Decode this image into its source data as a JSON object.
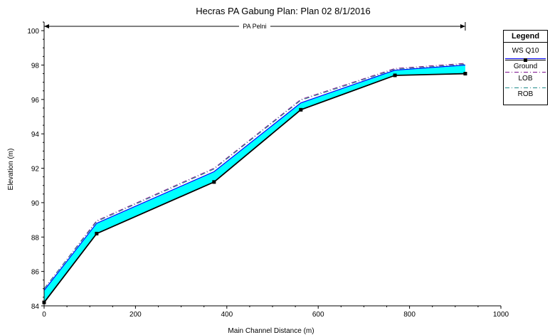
{
  "chart_data": {
    "type": "line",
    "title": "Hecras PA Gabung      Plan: Plan 02    8/1/2016",
    "xlabel": "Main Channel Distance (m)",
    "ylabel": "Elevation (m)",
    "xlim": [
      0,
      1000
    ],
    "ylim": [
      84,
      100.5
    ],
    "xticks": [
      0,
      200,
      400,
      600,
      800,
      1000
    ],
    "yticks": [
      84,
      86,
      88,
      90,
      92,
      94,
      96,
      98,
      100
    ],
    "reach_label": "PA Pelni",
    "reach_range": [
      0,
      922
    ],
    "series": [
      {
        "name": "WS  Q10",
        "color": "#0000ff",
        "x": [
          0,
          115,
          372,
          562,
          768,
          922
        ],
        "y": [
          84.9,
          88.8,
          91.8,
          95.8,
          97.7,
          98.0
        ]
      },
      {
        "name": "Ground",
        "color": "#000000",
        "x": [
          0,
          115,
          372,
          562,
          768,
          922
        ],
        "y": [
          84.2,
          88.2,
          91.2,
          95.4,
          97.4,
          97.5
        ]
      },
      {
        "name": "LOB",
        "color": "#7a0f8c",
        "x": [
          0,
          115,
          372,
          562,
          768,
          922
        ],
        "y": [
          85.0,
          88.95,
          92.0,
          96.0,
          97.8,
          98.1
        ]
      },
      {
        "name": "ROB",
        "color": "#1f8a8a",
        "x": [
          0,
          115,
          372,
          562,
          768,
          922
        ],
        "y": [
          85.0,
          88.9,
          91.95,
          95.95,
          97.75,
          98.05
        ]
      }
    ],
    "fill_color": "#00ffff",
    "grid": false,
    "legend_position": "right"
  },
  "legend": {
    "title": "Legend",
    "items": [
      {
        "label": "WS  Q10",
        "color": "#0000ff"
      },
      {
        "label": "Ground",
        "color": "#000000"
      },
      {
        "label": "LOB",
        "color": "#7a0f8c"
      },
      {
        "label": "ROB",
        "color": "#1f8a8a"
      }
    ]
  }
}
